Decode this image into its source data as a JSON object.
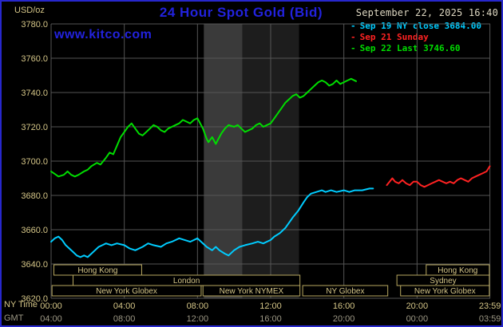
{
  "header": {
    "title": "24 Hour Spot Gold (Bid)",
    "date": "September 22, 2025 16:40",
    "site": "www.kitco.com"
  },
  "legend": {
    "items": [
      {
        "marker": "-",
        "label": "Sep 19 NY close 3684.00",
        "color": "#00ccff"
      },
      {
        "marker": "-",
        "label": "Sep 21 Sunday",
        "color": "#ff2222"
      },
      {
        "marker": "-",
        "label": "Sep 22 Last 3746.60",
        "color": "#00dd00"
      }
    ]
  },
  "axes": {
    "unit": "USD/oz",
    "ny_label": "NY Time",
    "gmt_label": "GMT",
    "y_ticks": [
      3780,
      3760,
      3740,
      3720,
      3700,
      3680,
      3660,
      3640,
      3620
    ],
    "x_ticks": [
      {
        "t": 0,
        "ny": "00:00",
        "gmt": "04:00"
      },
      {
        "t": 4,
        "ny": "04:00",
        "gmt": "08:00"
      },
      {
        "t": 8,
        "ny": "08:00",
        "gmt": "12:00"
      },
      {
        "t": 12,
        "ny": "12:00",
        "gmt": "16:00"
      },
      {
        "t": 16,
        "ny": "16:00",
        "gmt": "20:00"
      },
      {
        "t": 20,
        "ny": "20:00",
        "gmt": "00:00"
      },
      {
        "t": 23.983,
        "ny": "23:59",
        "gmt": "03:59"
      }
    ]
  },
  "colors": {
    "accent_blue": "#2222dd",
    "border_blue": "#2727cc",
    "khaki": "#d4c587",
    "gmt_gray": "#9c9784",
    "grid": "#555555",
    "session_border": "#b8a860",
    "date_text": "#ded8c2"
  },
  "bands": [
    {
      "t0": 8.35,
      "t1": 13.55,
      "color": "#1d1d1d"
    },
    {
      "t0": 8.35,
      "t1": 10.45,
      "color": "#3a3a3a"
    }
  ],
  "sessions": [
    {
      "row": 0,
      "t0": 0.15,
      "t1": 4.95,
      "label": "Hong Kong"
    },
    {
      "row": 0,
      "t0": 20.5,
      "t1": 23.95,
      "label": "Hong Kong"
    },
    {
      "row": 1,
      "t0": 1.2,
      "t1": 13.6,
      "label": "London"
    },
    {
      "row": 1,
      "t0": 18.9,
      "t1": 23.95,
      "label": "Sydney"
    },
    {
      "row": 2,
      "t0": 0.05,
      "t1": 8.2,
      "label": "New York Globex"
    },
    {
      "row": 2,
      "t0": 8.3,
      "t1": 13.6,
      "label": "New York NYMEX"
    },
    {
      "row": 2,
      "t0": 13.75,
      "t1": 18.4,
      "label": "NY Globex"
    },
    {
      "row": 2,
      "t0": 19.1,
      "t1": 23.95,
      "label": "New York Globex"
    }
  ],
  "chart_data": {
    "type": "line",
    "title": "24 Hour Spot Gold (Bid)",
    "ylabel": "USD/oz",
    "ylim": [
      3620,
      3780
    ],
    "xlim_hours": [
      0,
      24
    ],
    "grid": true,
    "legend_position": "top-right",
    "series": [
      {
        "name": "Sep 19 NY close",
        "color": "#00ccff",
        "close": 3684.0,
        "points": [
          [
            0,
            3653
          ],
          [
            0.2,
            3655
          ],
          [
            0.4,
            3656
          ],
          [
            0.6,
            3654
          ],
          [
            0.8,
            3651
          ],
          [
            1,
            3649
          ],
          [
            1.2,
            3647
          ],
          [
            1.4,
            3645
          ],
          [
            1.6,
            3644
          ],
          [
            1.8,
            3645
          ],
          [
            2,
            3644
          ],
          [
            2.2,
            3646
          ],
          [
            2.4,
            3648
          ],
          [
            2.6,
            3650
          ],
          [
            2.8,
            3651
          ],
          [
            3,
            3652
          ],
          [
            3.3,
            3651
          ],
          [
            3.6,
            3652
          ],
          [
            4,
            3651
          ],
          [
            4.3,
            3649
          ],
          [
            4.6,
            3648
          ],
          [
            5,
            3650
          ],
          [
            5.3,
            3652
          ],
          [
            5.6,
            3651
          ],
          [
            6,
            3650
          ],
          [
            6.3,
            3652
          ],
          [
            6.6,
            3653
          ],
          [
            7,
            3655
          ],
          [
            7.3,
            3654
          ],
          [
            7.6,
            3653
          ],
          [
            8,
            3655
          ],
          [
            8.2,
            3653
          ],
          [
            8.5,
            3650
          ],
          [
            8.8,
            3648
          ],
          [
            9,
            3650
          ],
          [
            9.2,
            3648
          ],
          [
            9.5,
            3646
          ],
          [
            9.7,
            3645
          ],
          [
            10,
            3648
          ],
          [
            10.3,
            3650
          ],
          [
            10.6,
            3651
          ],
          [
            11,
            3652
          ],
          [
            11.3,
            3653
          ],
          [
            11.6,
            3652
          ],
          [
            12,
            3654
          ],
          [
            12.2,
            3656
          ],
          [
            12.5,
            3658
          ],
          [
            12.8,
            3661
          ],
          [
            13,
            3664
          ],
          [
            13.2,
            3667
          ],
          [
            13.5,
            3671
          ],
          [
            13.8,
            3676
          ],
          [
            14,
            3679
          ],
          [
            14.2,
            3681
          ],
          [
            14.5,
            3682
          ],
          [
            14.8,
            3683
          ],
          [
            15,
            3682
          ],
          [
            15.3,
            3683
          ],
          [
            15.6,
            3682
          ],
          [
            16,
            3683
          ],
          [
            16.3,
            3682
          ],
          [
            16.6,
            3683
          ],
          [
            17,
            3683
          ],
          [
            17.4,
            3684
          ],
          [
            17.6,
            3684
          ]
        ]
      },
      {
        "name": "Sep 21 Sunday",
        "color": "#ff2222",
        "points": [
          [
            18.35,
            3686
          ],
          [
            18.5,
            3688
          ],
          [
            18.65,
            3690
          ],
          [
            18.8,
            3688
          ],
          [
            19,
            3687
          ],
          [
            19.2,
            3689
          ],
          [
            19.4,
            3687
          ],
          [
            19.6,
            3686
          ],
          [
            19.8,
            3688
          ],
          [
            20,
            3688
          ],
          [
            20.2,
            3686
          ],
          [
            20.4,
            3685
          ],
          [
            20.6,
            3686
          ],
          [
            20.8,
            3687
          ],
          [
            21,
            3688
          ],
          [
            21.2,
            3689
          ],
          [
            21.4,
            3688
          ],
          [
            21.6,
            3687
          ],
          [
            21.8,
            3688
          ],
          [
            22,
            3687
          ],
          [
            22.2,
            3689
          ],
          [
            22.4,
            3690
          ],
          [
            22.6,
            3689
          ],
          [
            22.8,
            3688
          ],
          [
            23,
            3690
          ],
          [
            23.2,
            3691
          ],
          [
            23.4,
            3692
          ],
          [
            23.6,
            3693
          ],
          [
            23.8,
            3694
          ],
          [
            23.98,
            3697
          ]
        ]
      },
      {
        "name": "Sep 22 Last",
        "color": "#00dd00",
        "last": 3746.6,
        "points": [
          [
            0,
            3694
          ],
          [
            0.2,
            3692.5
          ],
          [
            0.4,
            3691
          ],
          [
            0.7,
            3692
          ],
          [
            0.9,
            3694
          ],
          [
            1.1,
            3692
          ],
          [
            1.3,
            3691
          ],
          [
            1.5,
            3692
          ],
          [
            1.8,
            3694
          ],
          [
            2,
            3695
          ],
          [
            2.2,
            3697
          ],
          [
            2.5,
            3699
          ],
          [
            2.7,
            3698
          ],
          [
            3,
            3702
          ],
          [
            3.2,
            3705
          ],
          [
            3.4,
            3704
          ],
          [
            3.6,
            3709
          ],
          [
            3.8,
            3714
          ],
          [
            4,
            3717
          ],
          [
            4.2,
            3720
          ],
          [
            4.4,
            3722
          ],
          [
            4.6,
            3719
          ],
          [
            4.8,
            3716
          ],
          [
            5,
            3715
          ],
          [
            5.2,
            3717
          ],
          [
            5.4,
            3719
          ],
          [
            5.6,
            3721
          ],
          [
            5.8,
            3720
          ],
          [
            6,
            3718
          ],
          [
            6.2,
            3717
          ],
          [
            6.4,
            3719
          ],
          [
            6.6,
            3720
          ],
          [
            6.8,
            3721
          ],
          [
            7,
            3722
          ],
          [
            7.2,
            3724
          ],
          [
            7.4,
            3723
          ],
          [
            7.6,
            3722
          ],
          [
            7.8,
            3724
          ],
          [
            8,
            3725
          ],
          [
            8.1,
            3723
          ],
          [
            8.3,
            3719
          ],
          [
            8.5,
            3713
          ],
          [
            8.6,
            3711
          ],
          [
            8.8,
            3714
          ],
          [
            9,
            3710
          ],
          [
            9.1,
            3712
          ],
          [
            9.3,
            3716
          ],
          [
            9.5,
            3719
          ],
          [
            9.7,
            3721
          ],
          [
            10,
            3720
          ],
          [
            10.2,
            3721
          ],
          [
            10.4,
            3719
          ],
          [
            10.6,
            3717
          ],
          [
            10.8,
            3718
          ],
          [
            11,
            3719
          ],
          [
            11.2,
            3721
          ],
          [
            11.4,
            3722
          ],
          [
            11.6,
            3720
          ],
          [
            11.8,
            3721
          ],
          [
            12,
            3722
          ],
          [
            12.2,
            3725
          ],
          [
            12.4,
            3728
          ],
          [
            12.6,
            3731
          ],
          [
            12.8,
            3734
          ],
          [
            13,
            3736
          ],
          [
            13.2,
            3738
          ],
          [
            13.4,
            3739
          ],
          [
            13.6,
            3737
          ],
          [
            13.8,
            3738
          ],
          [
            14,
            3740
          ],
          [
            14.2,
            3742
          ],
          [
            14.4,
            3744
          ],
          [
            14.6,
            3746
          ],
          [
            14.8,
            3747
          ],
          [
            15,
            3746
          ],
          [
            15.2,
            3744
          ],
          [
            15.4,
            3745
          ],
          [
            15.6,
            3747
          ],
          [
            15.8,
            3745
          ],
          [
            16,
            3746
          ],
          [
            16.2,
            3747
          ],
          [
            16.4,
            3748
          ],
          [
            16.67,
            3746.6
          ]
        ]
      }
    ]
  }
}
